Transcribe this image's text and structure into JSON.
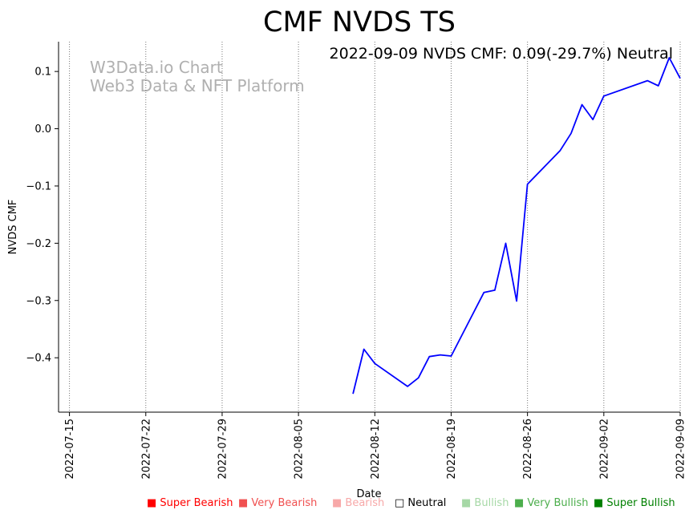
{
  "chart_data": {
    "type": "line",
    "title": "CMF NVDS TS",
    "annotation": "2022-09-09 NVDS CMF: 0.09(-29.7%) Neutral",
    "watermark": [
      "W3Data.io Chart",
      "Web3 Data & NFT Platform"
    ],
    "xlabel": "Date",
    "ylabel": "NVDS CMF",
    "xlim": [
      "2022-07-14",
      "2022-09-09"
    ],
    "ylim": [
      -0.495,
      0.152
    ],
    "x_ticks": [
      "2022-07-15",
      "2022-07-22",
      "2022-07-29",
      "2022-08-05",
      "2022-08-12",
      "2022-08-19",
      "2022-08-26",
      "2022-09-02",
      "2022-09-09"
    ],
    "y_ticks": [
      0.1,
      0.0,
      -0.1,
      -0.2,
      -0.3,
      -0.4
    ],
    "y_tick_labels": [
      "0.1",
      "0.0",
      "−0.1",
      "−0.2",
      "−0.3",
      "−0.4"
    ],
    "grid": "vertical dotted at x ticks",
    "series": [
      {
        "name": "NVDS CMF",
        "color": "#0000ff",
        "x": [
          "2022-08-10",
          "2022-08-11",
          "2022-08-12",
          "2022-08-15",
          "2022-08-16",
          "2022-08-17",
          "2022-08-18",
          "2022-08-19",
          "2022-08-22",
          "2022-08-23",
          "2022-08-24",
          "2022-08-25",
          "2022-08-26",
          "2022-08-29",
          "2022-08-30",
          "2022-08-31",
          "2022-09-01",
          "2022-09-02",
          "2022-09-06",
          "2022-09-07",
          "2022-09-08",
          "2022-09-09"
        ],
        "values": [
          -0.463,
          -0.385,
          -0.41,
          -0.45,
          -0.435,
          -0.398,
          -0.395,
          -0.397,
          -0.286,
          -0.282,
          -0.2,
          -0.301,
          -0.097,
          -0.038,
          -0.008,
          0.042,
          0.016,
          0.057,
          0.084,
          0.075,
          0.124,
          0.088
        ]
      }
    ],
    "legend": [
      {
        "marker": "■",
        "label": "Super Bearish",
        "color": "#ff0000"
      },
      {
        "marker": "■",
        "label": "Very Bearish",
        "color": "#f05050"
      },
      {
        "marker": "■",
        "label": "Bearish",
        "color": "#f7a8a8"
      },
      {
        "marker": "□",
        "label": "Neutral",
        "color": "#000000"
      },
      {
        "marker": "■",
        "label": "Bullish",
        "color": "#a6d8a6"
      },
      {
        "marker": "■",
        "label": "Very Bullish",
        "color": "#4cae4c"
      },
      {
        "marker": "■",
        "label": "Super Bullish",
        "color": "#008000"
      }
    ]
  }
}
